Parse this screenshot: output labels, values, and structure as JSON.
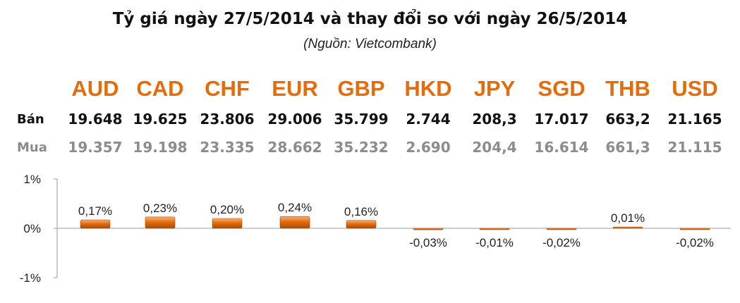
{
  "header": {
    "title": "Tỷ giá ngày 27/5/2014 và thay đổi so với ngày 26/5/2014",
    "subtitle": "(Nguồn: Vietcombank)"
  },
  "table": {
    "sell_label": "Bán",
    "buy_label": "Mua",
    "currencies": [
      "AUD",
      "CAD",
      "CHF",
      "EUR",
      "GBP",
      "HKD",
      "JPY",
      "SGD",
      "THB",
      "USD"
    ],
    "sell": [
      "19.648",
      "19.625",
      "23.806",
      "29.006",
      "35.799",
      "2.744",
      "208,3",
      "17.017",
      "663,2",
      "21.165"
    ],
    "buy": [
      "19.357",
      "19.198",
      "23.335",
      "28.662",
      "35.232",
      "2.690",
      "204,4",
      "16.614",
      "661,3",
      "21.115"
    ]
  },
  "chart_data": {
    "type": "bar",
    "title": "Tỷ giá ngày 27/5/2014 và thay đổi so với ngày 26/5/2014",
    "subtitle": "(Nguồn: Vietcombank)",
    "categories": [
      "AUD",
      "CAD",
      "CHF",
      "EUR",
      "GBP",
      "HKD",
      "JPY",
      "SGD",
      "THB",
      "USD"
    ],
    "values": [
      0.17,
      0.23,
      0.2,
      0.24,
      0.16,
      -0.03,
      -0.01,
      -0.02,
      0.01,
      -0.02
    ],
    "data_labels": [
      "0,17%",
      "0,23%",
      "0,20%",
      "0,24%",
      "0,16%",
      "-0,03%",
      "-0,01%",
      "-0,02%",
      "0,01%",
      "-0,02%"
    ],
    "yticks": [
      1,
      0,
      -1
    ],
    "ytick_labels": [
      "1%",
      "0%",
      "-1%"
    ],
    "ylim": [
      -1,
      1
    ],
    "grid": false,
    "bar_color": "#e46c0a",
    "bar_highlight": "#f7a35c",
    "accent_color": "#e46c0a"
  }
}
